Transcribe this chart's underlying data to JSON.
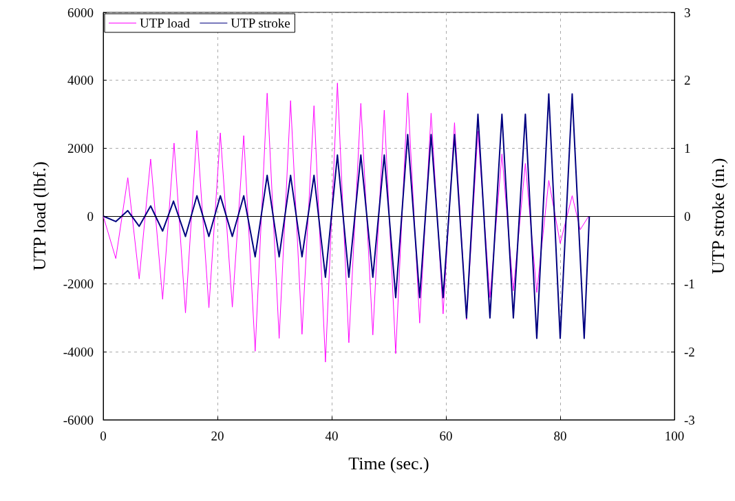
{
  "chart_data": {
    "type": "line",
    "xlabel": "Time (sec.)",
    "ylabel": "UTP load (lbf.)",
    "y2label": "UTP stroke (in.)",
    "xlim": [
      0,
      100
    ],
    "xticks": [
      0,
      20,
      40,
      60,
      80,
      100
    ],
    "ylim": [
      -6000,
      6000
    ],
    "yticks": [
      -6000,
      -4000,
      -2000,
      0,
      2000,
      4000,
      6000
    ],
    "y2lim": [
      -3,
      3
    ],
    "y2ticks": [
      -3,
      -2,
      -1,
      0,
      1,
      2,
      3
    ],
    "grid": true,
    "legend": "top left",
    "marker": "none",
    "line_style": "solid",
    "ref_lines": [
      {
        "axis": "y",
        "value": 0,
        "color": "#000000"
      }
    ],
    "series": [
      {
        "name": "UTP load",
        "color": "#ff00ff",
        "x": [
          0,
          2.2,
          4.3,
          6.3,
          8.3,
          10.4,
          12.4,
          14.4,
          16.4,
          18.5,
          20.5,
          22.6,
          24.6,
          26.6,
          28.7,
          30.8,
          32.8,
          34.8,
          36.9,
          38.9,
          41,
          43,
          45.1,
          47.2,
          49.2,
          51.2,
          53.3,
          55.4,
          57.4,
          59.5,
          61.5,
          63.6,
          65.6,
          67.7,
          69.8,
          71.8,
          73.9,
          75.9,
          78,
          80,
          82.1,
          83.5,
          85
        ],
        "values": [
          0,
          -1250,
          1130,
          -1850,
          1680,
          -2450,
          2150,
          -2850,
          2520,
          -2700,
          2450,
          -2680,
          2370,
          -3980,
          3620,
          -3600,
          3400,
          -3480,
          3250,
          -4300,
          3920,
          -3730,
          3320,
          -3500,
          3120,
          -4050,
          3630,
          -3150,
          3030,
          -2880,
          2750,
          -3050,
          2500,
          -2400,
          1830,
          -2200,
          1550,
          -2250,
          1050,
          -800,
          600,
          -400,
          0
        ]
      },
      {
        "name": "UTP stroke",
        "color": "#000080",
        "axis": "y2",
        "x": [
          0,
          2.2,
          4.3,
          6.3,
          8.3,
          10.4,
          12.3,
          14.4,
          16.4,
          18.5,
          20.5,
          22.6,
          24.6,
          26.6,
          28.7,
          30.8,
          32.8,
          34.8,
          36.9,
          38.9,
          41,
          43,
          45.1,
          47.2,
          49.2,
          51.2,
          53.3,
          55.4,
          57.4,
          59.5,
          61.5,
          63.6,
          65.6,
          67.7,
          69.8,
          71.8,
          73.9,
          75.9,
          78,
          80,
          82.1,
          84.2,
          85.1
        ],
        "values": [
          0,
          -0.08,
          0.08,
          -0.15,
          0.15,
          -0.22,
          0.22,
          -0.3,
          0.3,
          -0.3,
          0.3,
          -0.3,
          0.3,
          -0.6,
          0.6,
          -0.6,
          0.6,
          -0.6,
          0.6,
          -0.9,
          0.9,
          -0.9,
          0.9,
          -0.9,
          0.9,
          -1.2,
          1.2,
          -1.2,
          1.2,
          -1.2,
          1.2,
          -1.5,
          1.5,
          -1.5,
          1.5,
          -1.5,
          1.5,
          -1.8,
          1.8,
          -1.8,
          1.8,
          -1.8,
          0
        ]
      }
    ]
  }
}
